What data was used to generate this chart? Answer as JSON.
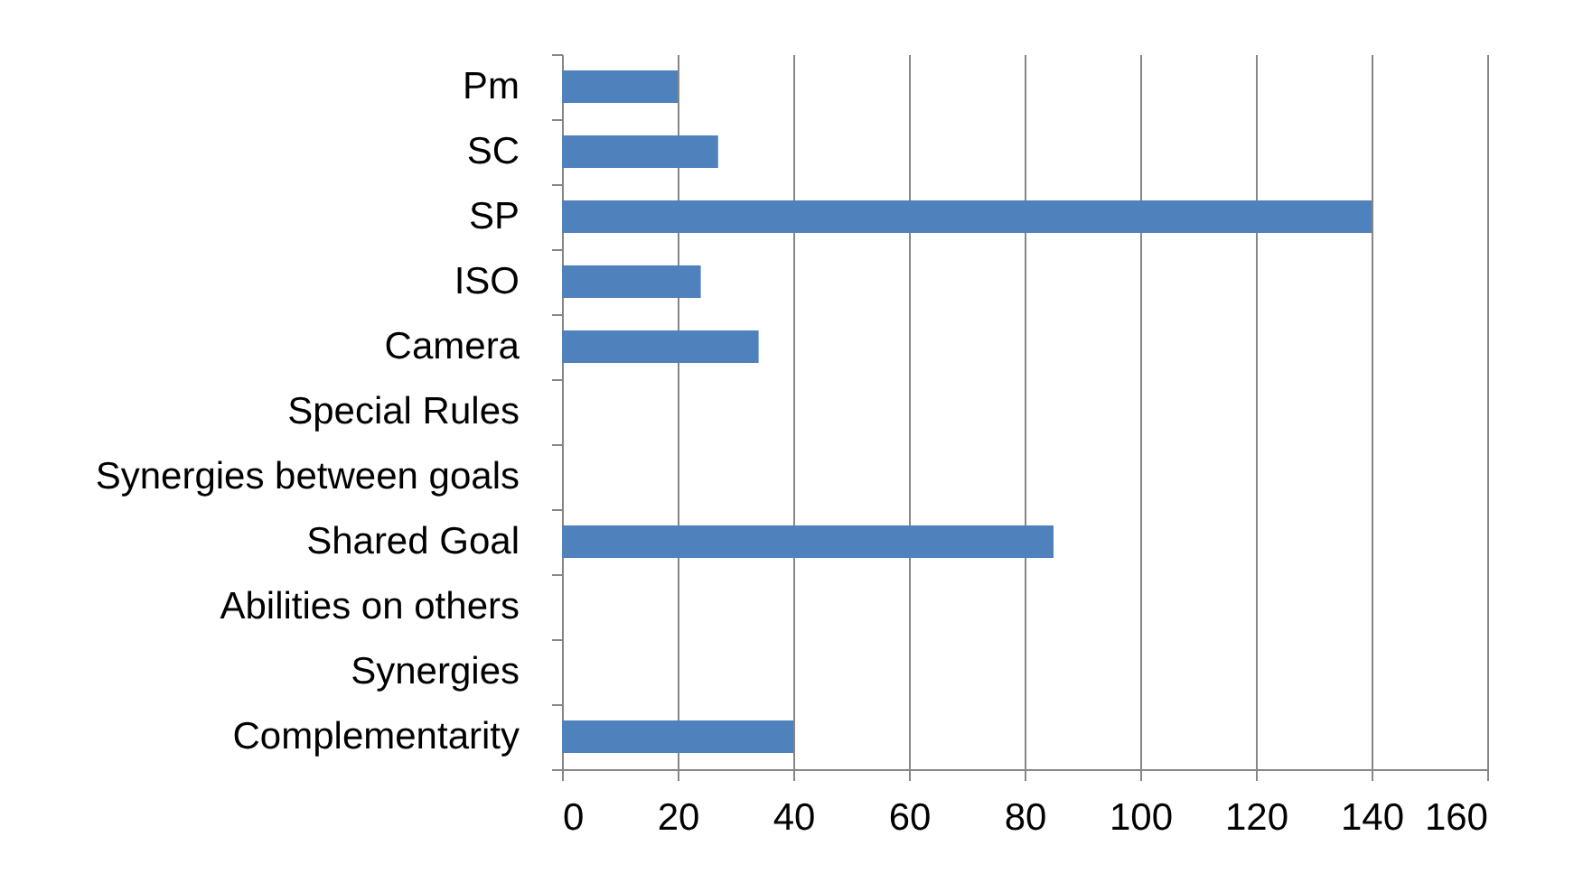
{
  "chart_data": {
    "type": "bar",
    "orientation": "horizontal",
    "categories": [
      "Pm",
      "SC",
      "SP",
      "ISO",
      "Camera",
      "Special Rules",
      "Synergies between goals",
      "Shared Goal",
      "Abilities on others",
      "Synergies",
      "Complementarity"
    ],
    "values": [
      20,
      27,
      140,
      24,
      34,
      null,
      null,
      85,
      null,
      null,
      40
    ],
    "color": "#4f81bd",
    "xlim": [
      0,
      160
    ],
    "xticks": [
      0,
      20,
      40,
      60,
      80,
      100,
      120,
      140,
      160
    ],
    "grid": "x"
  }
}
